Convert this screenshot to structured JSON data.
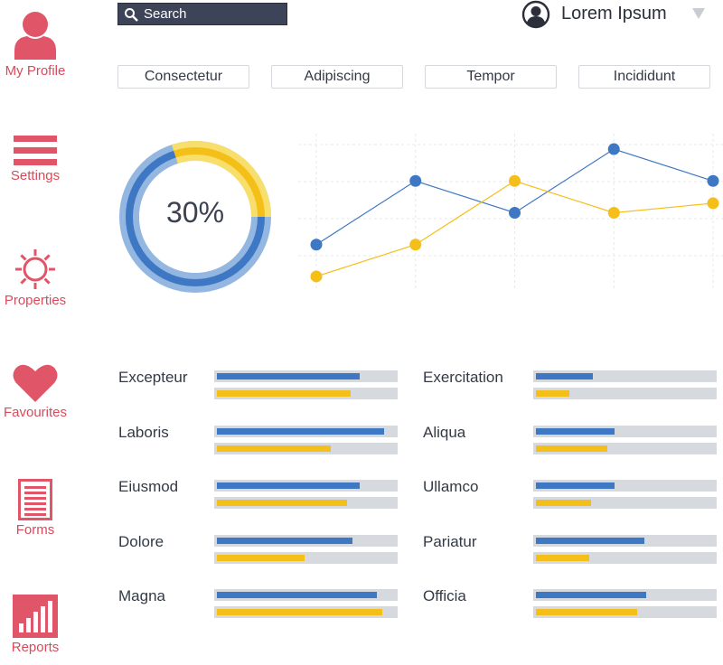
{
  "sidebar": {
    "items": [
      {
        "label": "My Profile",
        "icon": "profile-icon"
      },
      {
        "label": "Settings",
        "icon": "hamburger-menu-icon"
      },
      {
        "label": "Properties",
        "icon": "sun-gear-icon"
      },
      {
        "label": "Favourites",
        "icon": "heart-icon"
      },
      {
        "label": "Forms",
        "icon": "form-list-icon"
      },
      {
        "label": "Reports",
        "icon": "bar-chart-icon"
      }
    ]
  },
  "search": {
    "placeholder": "Search"
  },
  "user": {
    "name": "Lorem Ipsum"
  },
  "tabs": [
    "Consectetur",
    "Adipiscing",
    "Tempor",
    "Incididunt"
  ],
  "donut": {
    "label": "30%",
    "value": 0.3
  },
  "colors": {
    "accent": "#d94a5a",
    "blue": "#3e77c3",
    "yellow": "#f5bf1a",
    "search_bg": "#3d4458"
  },
  "chart_data": {
    "type": "line",
    "x": [
      1,
      2,
      3,
      4,
      5
    ],
    "series": [
      {
        "values": [
          1.0,
          3.0,
          2.0,
          4.0,
          3.0
        ],
        "color": "#3e77c3"
      },
      {
        "values": [
          0.0,
          1.0,
          3.0,
          2.0,
          2.3
        ],
        "color": "#f5bf1a"
      }
    ],
    "ylim": [
      -0.2,
      4.2
    ],
    "grid": true
  },
  "metrics": {
    "left": [
      {
        "label": "Excepteur",
        "blue": 0.8,
        "yellow": 0.75
      },
      {
        "label": "Laboris",
        "blue": 0.94,
        "yellow": 0.64
      },
      {
        "label": "Eiusmod",
        "blue": 0.8,
        "yellow": 0.73
      },
      {
        "label": "Dolore",
        "blue": 0.76,
        "yellow": 0.49
      },
      {
        "label": "Magna",
        "blue": 0.9,
        "yellow": 0.93
      }
    ],
    "right": [
      {
        "label": "Exercitation",
        "blue": 0.32,
        "yellow": 0.19
      },
      {
        "label": "Aliqua",
        "blue": 0.44,
        "yellow": 0.4
      },
      {
        "label": "Ullamco",
        "blue": 0.44,
        "yellow": 0.31
      },
      {
        "label": "Pariatur",
        "blue": 0.61,
        "yellow": 0.3
      },
      {
        "label": "Officia",
        "blue": 0.62,
        "yellow": 0.57
      }
    ]
  }
}
